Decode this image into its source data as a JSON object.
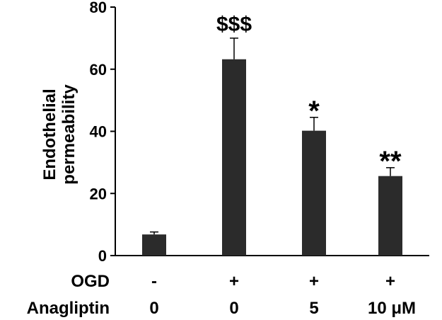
{
  "chart_data": {
    "type": "bar",
    "ylabel": [
      "Endothelial",
      "permeability"
    ],
    "ylim": [
      0,
      80
    ],
    "yticks": [
      0,
      20,
      40,
      60,
      80
    ],
    "grid": false,
    "bar_color": "#2b2b2b",
    "bars": [
      {
        "value": 6.8,
        "error": 0.8,
        "significance": ""
      },
      {
        "value": 63.2,
        "error": 6.8,
        "significance": "$$$"
      },
      {
        "value": 40.2,
        "error": 4.3,
        "significance": "*"
      },
      {
        "value": 25.6,
        "error": 2.7,
        "significance": "**"
      }
    ],
    "conditions": [
      {
        "label": "OGD",
        "values": [
          "-",
          "+",
          "+",
          "+"
        ]
      },
      {
        "label": "Anagliptin",
        "values": [
          "0",
          "0",
          "5",
          "10 μM"
        ]
      }
    ]
  }
}
